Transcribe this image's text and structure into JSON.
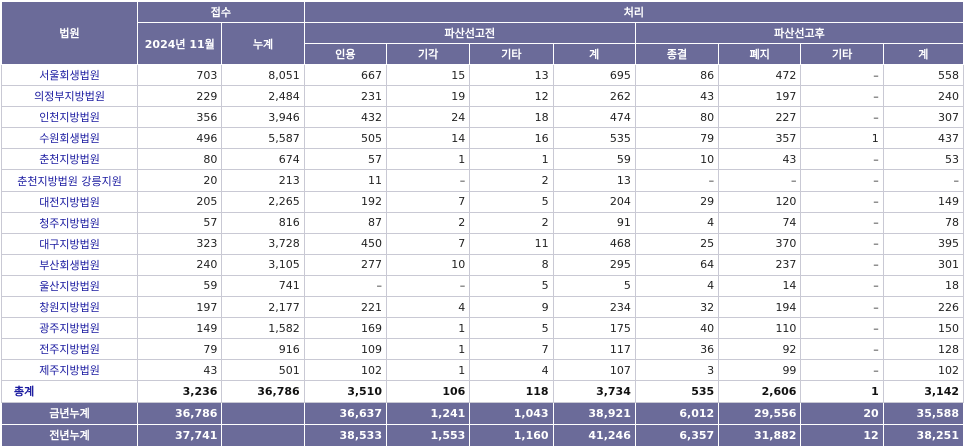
{
  "headers": {
    "court": "법원",
    "receipt": "접수",
    "month": "2024년 11월",
    "cumulative": "누계",
    "processing": "처리",
    "before": "파산선고전",
    "after": "파산선고후",
    "sub": [
      "인용",
      "기각",
      "기타",
      "계",
      "종결",
      "폐지",
      "기타",
      "계"
    ]
  },
  "rows": [
    [
      "서울회생법원",
      "703",
      "8,051",
      "667",
      "15",
      "13",
      "695",
      "86",
      "472",
      "–",
      "558"
    ],
    [
      "의정부지방법원",
      "229",
      "2,484",
      "231",
      "19",
      "12",
      "262",
      "43",
      "197",
      "–",
      "240"
    ],
    [
      "인천지방법원",
      "356",
      "3,946",
      "432",
      "24",
      "18",
      "474",
      "80",
      "227",
      "–",
      "307"
    ],
    [
      "수원회생법원",
      "496",
      "5,587",
      "505",
      "14",
      "16",
      "535",
      "79",
      "357",
      "1",
      "437"
    ],
    [
      "춘천지방법원",
      "80",
      "674",
      "57",
      "1",
      "1",
      "59",
      "10",
      "43",
      "–",
      "53"
    ],
    [
      "춘천지방법원 강릉지원",
      "20",
      "213",
      "11",
      "–",
      "2",
      "13",
      "–",
      "–",
      "–",
      "–"
    ],
    [
      "대전지방법원",
      "205",
      "2,265",
      "192",
      "7",
      "5",
      "204",
      "29",
      "120",
      "–",
      "149"
    ],
    [
      "청주지방법원",
      "57",
      "816",
      "87",
      "2",
      "2",
      "91",
      "4",
      "74",
      "–",
      "78"
    ],
    [
      "대구지방법원",
      "323",
      "3,728",
      "450",
      "7",
      "11",
      "468",
      "25",
      "370",
      "–",
      "395"
    ],
    [
      "부산회생법원",
      "240",
      "3,105",
      "277",
      "10",
      "8",
      "295",
      "64",
      "237",
      "–",
      "301"
    ],
    [
      "울산지방법원",
      "59",
      "741",
      "–",
      "–",
      "5",
      "5",
      "4",
      "14",
      "–",
      "18"
    ],
    [
      "창원지방법원",
      "197",
      "2,177",
      "221",
      "4",
      "9",
      "234",
      "32",
      "194",
      "–",
      "226"
    ],
    [
      "광주지방법원",
      "149",
      "1,582",
      "169",
      "1",
      "5",
      "175",
      "40",
      "110",
      "–",
      "150"
    ],
    [
      "전주지방법원",
      "79",
      "916",
      "109",
      "1",
      "7",
      "117",
      "36",
      "92",
      "–",
      "128"
    ],
    [
      "제주지방법원",
      "43",
      "501",
      "102",
      "1",
      "4",
      "107",
      "3",
      "99",
      "–",
      "102"
    ]
  ],
  "total": [
    "총계",
    "3,236",
    "36,786",
    "3,510",
    "106",
    "118",
    "3,734",
    "535",
    "2,606",
    "1",
    "3,142"
  ],
  "this_year": [
    "금년누계",
    "36,786",
    "",
    "36,637",
    "1,241",
    "1,043",
    "38,921",
    "6,012",
    "29,556",
    "20",
    "35,588"
  ],
  "last_year": [
    "전년누계",
    "37,741",
    "",
    "38,533",
    "1,553",
    "1,160",
    "41,246",
    "6,357",
    "31,882",
    "12",
    "38,251"
  ]
}
